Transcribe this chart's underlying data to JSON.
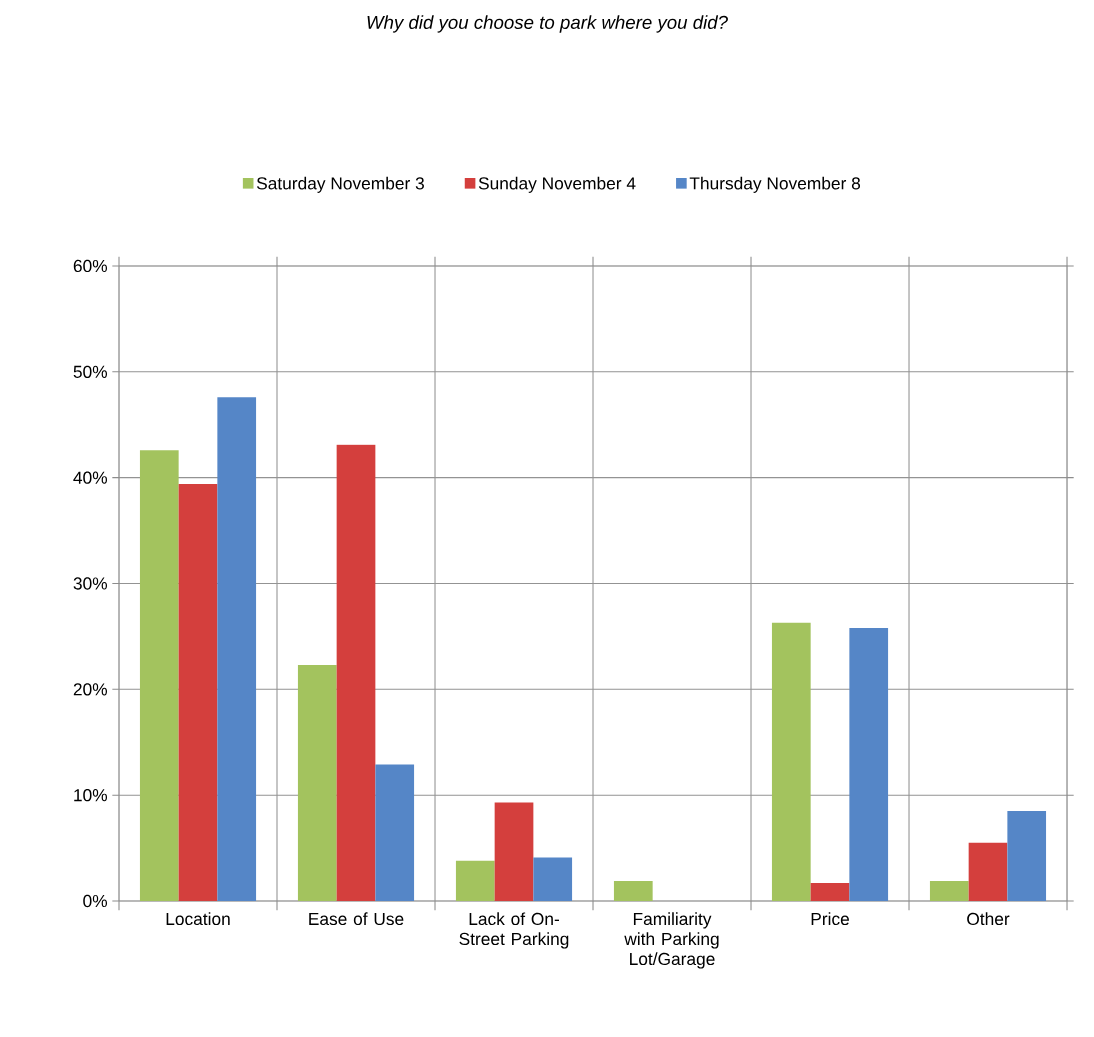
{
  "chart_data": {
    "type": "bar",
    "title": "*Why did you choose to park where you did?*",
    "categories": [
      "Location",
      "Ease of Use",
      "Lack of On-Street Parking",
      "Familiarity with Parking Lot/Garage",
      "Price",
      "Other"
    ],
    "series": [
      {
        "name": "Saturday November 3",
        "color": "#a3c35e",
        "values": [
          42.6,
          22.3,
          3.8,
          1.9,
          26.3,
          1.9
        ]
      },
      {
        "name": "Sunday November 4",
        "color": "#d43f3d",
        "values": [
          39.4,
          43.1,
          9.3,
          null,
          1.7,
          5.5
        ]
      },
      {
        "name": "Thursday November 8",
        "color": "#5586c7",
        "values": [
          47.6,
          12.9,
          4.1,
          null,
          25.8,
          8.5
        ]
      }
    ],
    "ylim": [
      0,
      60
    ],
    "yticks": [
      {
        "value": 0,
        "label": "0%"
      },
      {
        "value": 10,
        "label": "10%"
      },
      {
        "value": 20,
        "label": "20%"
      },
      {
        "value": 30,
        "label": "30%"
      },
      {
        "value": 40,
        "label": "40%"
      },
      {
        "value": 50,
        "label": "50%"
      },
      {
        "value": 60,
        "label": "60%"
      }
    ],
    "grid": true,
    "legend": "top"
  }
}
